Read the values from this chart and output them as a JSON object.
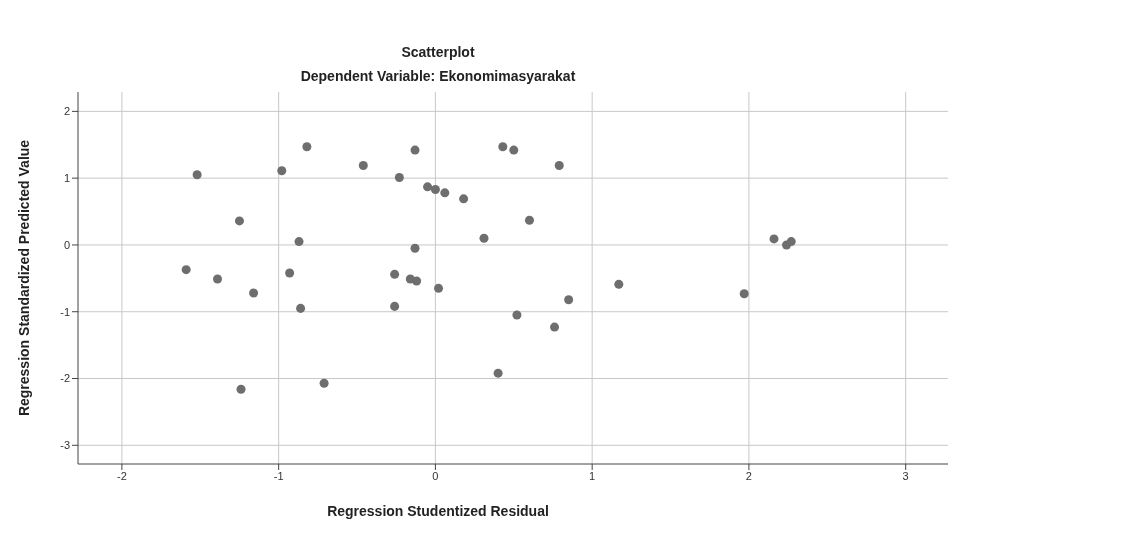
{
  "chart_data": {
    "type": "scatter",
    "title": "Scatterplot",
    "subtitle": "Dependent Variable: Ekonomimasyarakat",
    "xlabel": "Regression Studentized Residual",
    "ylabel": "Regression Standardized Predicted Value",
    "x": [
      -1.52,
      -1.59,
      -1.39,
      -1.25,
      -1.24,
      -1.16,
      -0.98,
      -0.82,
      -0.87,
      -0.93,
      -0.86,
      -0.71,
      -0.46,
      -0.13,
      -0.23,
      -0.13,
      -0.26,
      -0.26,
      -0.16,
      -0.12,
      -0.05,
      0.0,
      0.06,
      0.18,
      0.02,
      0.43,
      0.5,
      0.79,
      0.6,
      0.31,
      1.17,
      1.97,
      2.16,
      2.24,
      2.27,
      0.85,
      0.52,
      0.76,
      0.4
    ],
    "series": [
      {
        "color": "#6e6e6e",
        "values": [
          1.05,
          -0.37,
          -0.51,
          0.36,
          -2.16,
          -0.72,
          1.11,
          1.47,
          0.05,
          -0.42,
          -0.95,
          -2.07,
          1.19,
          1.42,
          1.01,
          -0.05,
          -0.44,
          -0.92,
          -0.51,
          -0.54,
          0.87,
          0.83,
          0.78,
          0.69,
          -0.65,
          1.47,
          1.42,
          1.19,
          0.37,
          0.1,
          -0.59,
          -0.73,
          0.09,
          0.0,
          0.05,
          -0.82,
          -1.05,
          -1.23,
          -1.92
        ]
      }
    ],
    "xlim": [
      -2.28,
      3.27
    ],
    "xticks": [
      -2,
      -1,
      0,
      1,
      2,
      3
    ],
    "ylim": [
      -3.28,
      2.29
    ],
    "yticks": [
      -3,
      -2,
      -1,
      0,
      1,
      2
    ],
    "grid": true,
    "legend": false,
    "marker": "circle"
  }
}
